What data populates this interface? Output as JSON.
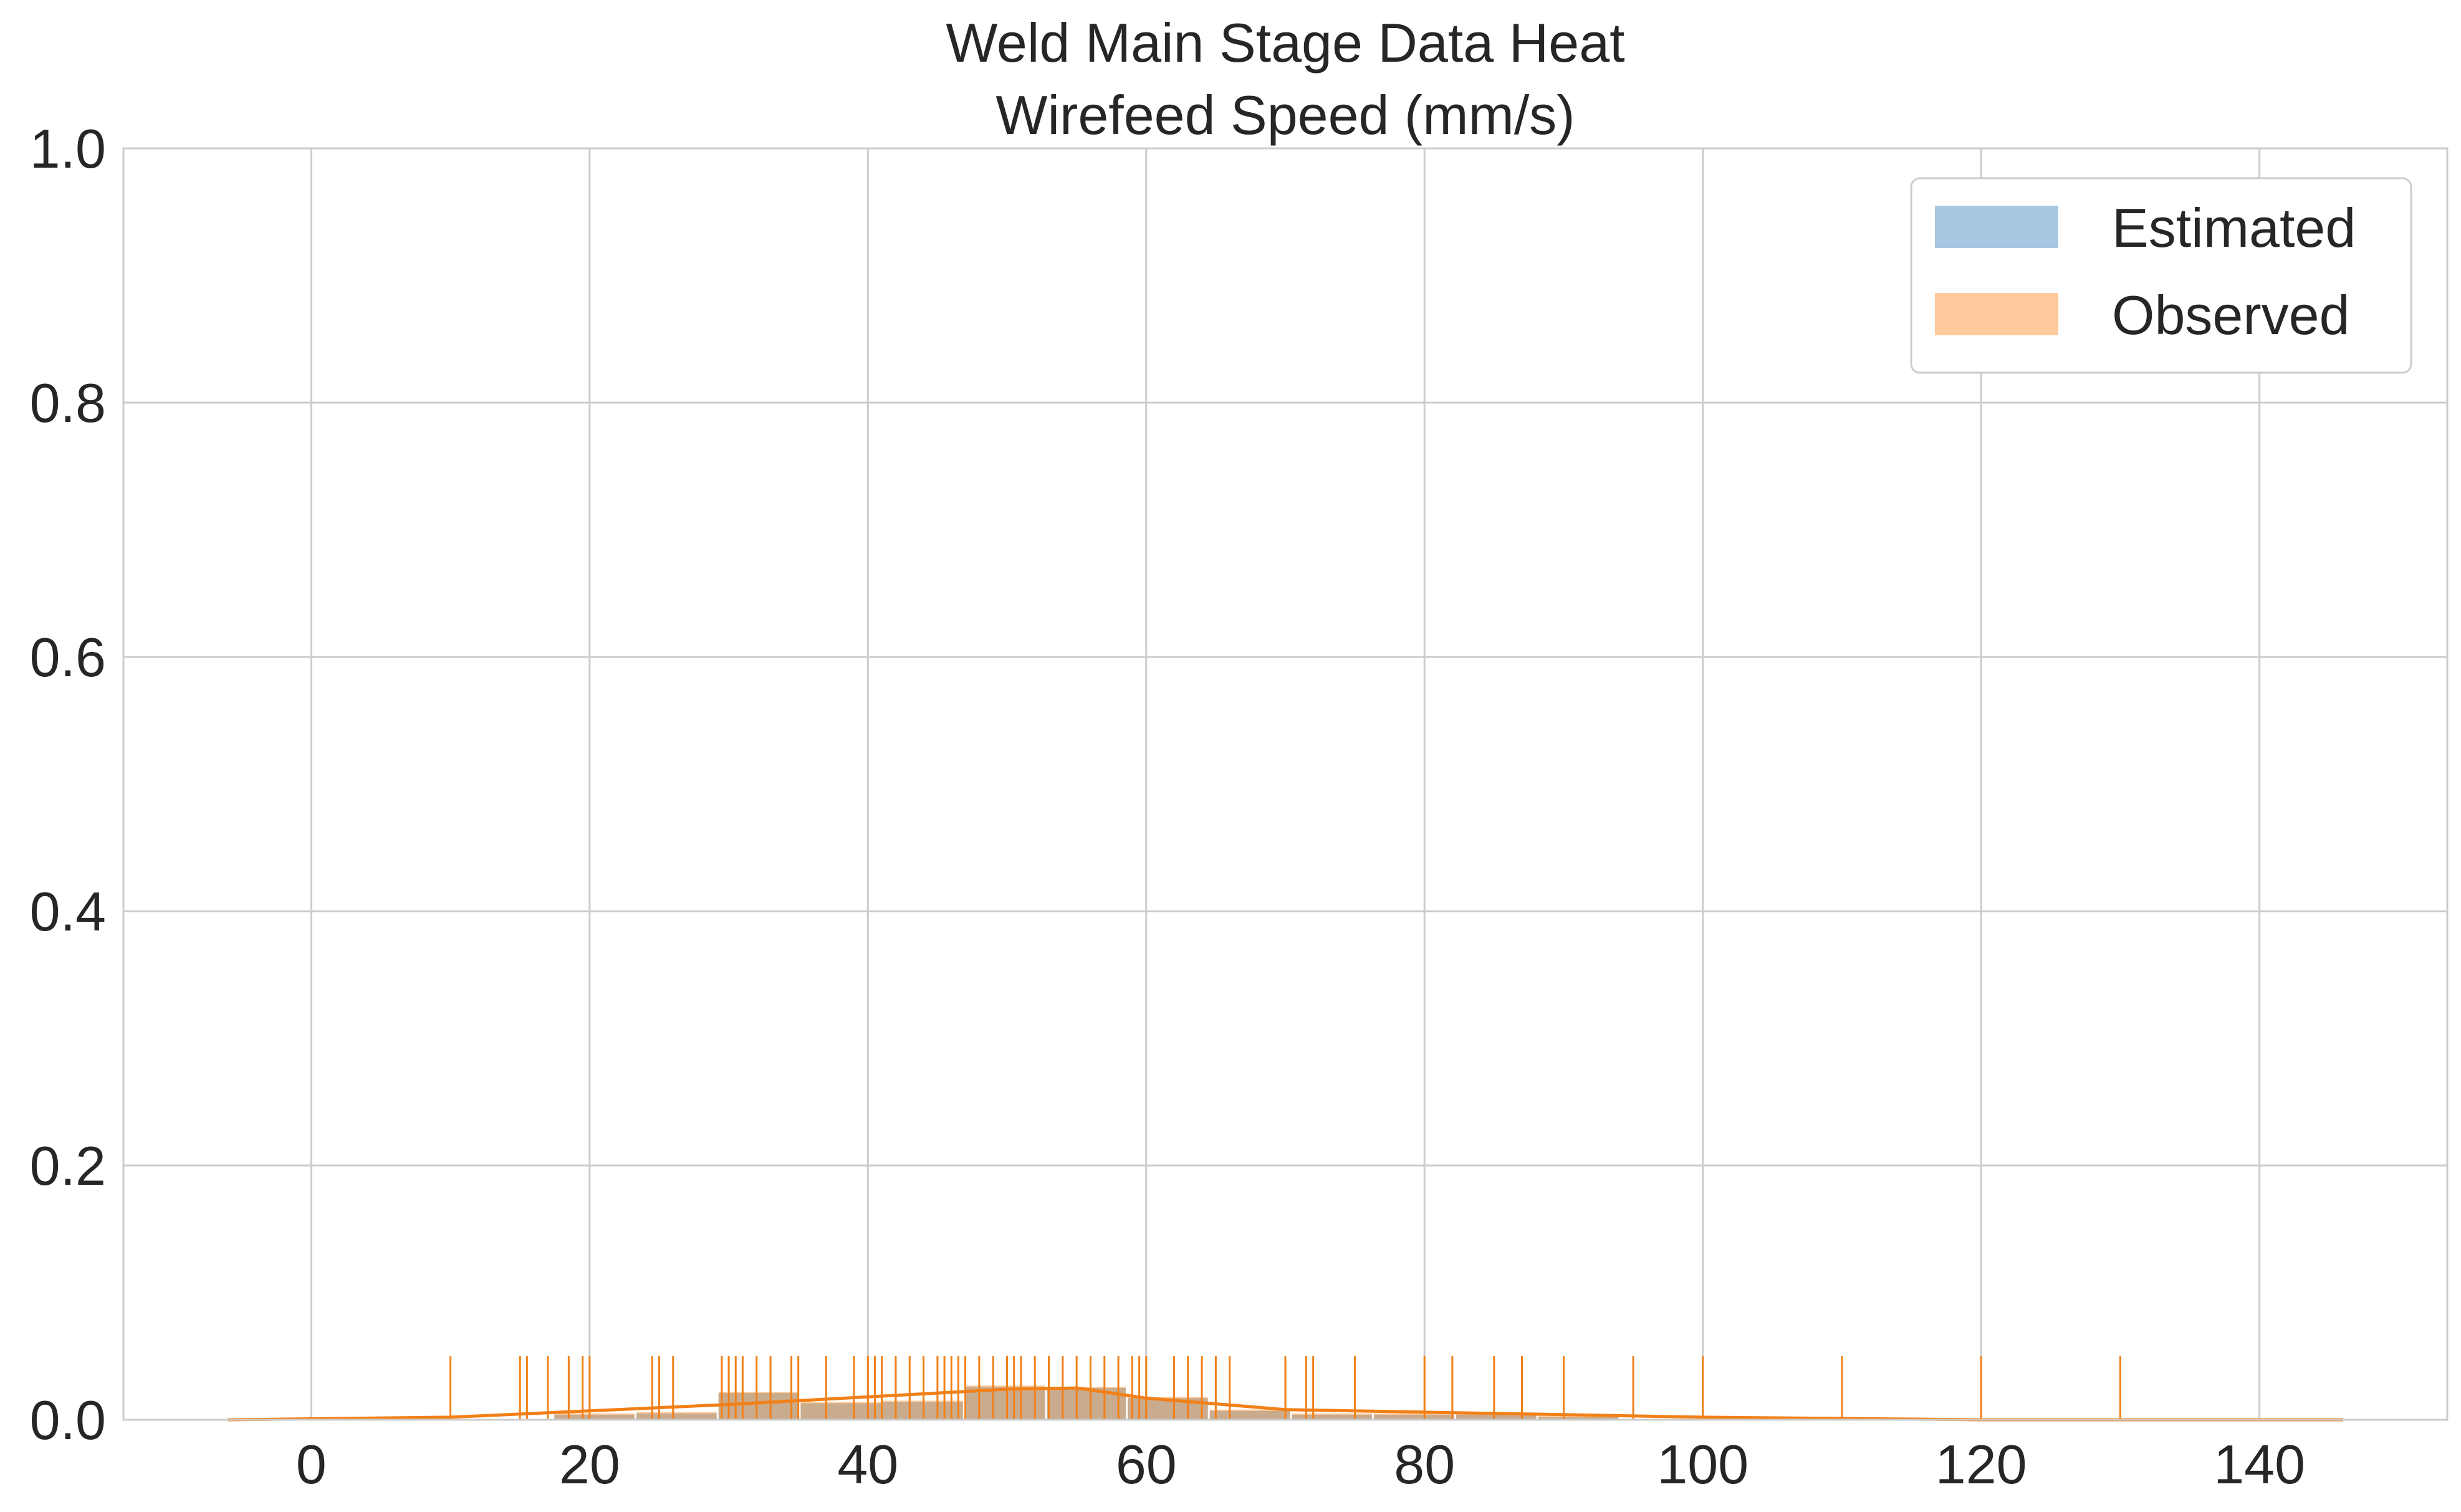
{
  "chart_data": {
    "type": "histogram",
    "title": "Weld Main Stage Data Heat",
    "subtitle": "Wirefeed Speed (mm/s)",
    "xlim": [
      -13.5,
      153.5
    ],
    "ylim": [
      0,
      1
    ],
    "x_ticks": [
      "0",
      "20",
      "40",
      "60",
      "80",
      "100",
      "120",
      "140"
    ],
    "y_ticks": [
      "0.0",
      "0.2",
      "0.4",
      "0.6",
      "0.8",
      "1.0"
    ],
    "grid": true,
    "legend": {
      "placement": "top-right",
      "entries": [
        {
          "label": "Estimated",
          "color": "#a6c6e1"
        },
        {
          "label": "Observed",
          "color": "#ffc99b"
        }
      ]
    },
    "histogram_bins": [
      {
        "x0": 17.4,
        "x1": 23.3,
        "estimated": 0.004,
        "observed": 0.005
      },
      {
        "x0": 23.3,
        "x1": 29.2,
        "estimated": 0.005,
        "observed": 0.006
      },
      {
        "x0": 29.2,
        "x1": 35.1,
        "estimated": 0.021,
        "observed": 0.022
      },
      {
        "x0": 35.1,
        "x1": 41.0,
        "estimated": 0.013,
        "observed": 0.014
      },
      {
        "x0": 41.0,
        "x1": 46.9,
        "estimated": 0.014,
        "observed": 0.015
      },
      {
        "x0": 46.9,
        "x1": 52.8,
        "estimated": 0.026,
        "observed": 0.027
      },
      {
        "x0": 52.8,
        "x1": 58.6,
        "estimated": 0.025,
        "observed": 0.026
      },
      {
        "x0": 58.6,
        "x1": 64.5,
        "estimated": 0.017,
        "observed": 0.018
      },
      {
        "x0": 64.5,
        "x1": 70.4,
        "estimated": 0.007,
        "observed": 0.008
      },
      {
        "x0": 70.4,
        "x1": 76.3,
        "estimated": 0.004,
        "observed": 0.005
      },
      {
        "x0": 76.3,
        "x1": 82.2,
        "estimated": 0.004,
        "observed": 0.005
      },
      {
        "x0": 82.2,
        "x1": 88.1,
        "estimated": 0.004,
        "observed": 0.005
      },
      {
        "x0": 88.1,
        "x1": 94.0,
        "estimated": 0.002,
        "observed": 0.003
      }
    ],
    "kde_line": {
      "color": "#f28018",
      "x": [
        -6,
        10,
        30,
        40,
        50,
        55,
        60,
        70,
        80,
        90,
        100,
        120,
        146
      ],
      "y": [
        0.0,
        0.002,
        0.012,
        0.018,
        0.024,
        0.025,
        0.017,
        0.008,
        0.006,
        0.004,
        0.002,
        0.0,
        0.0
      ]
    },
    "rug": {
      "color": "#f28018",
      "height": 0.05,
      "x": [
        10,
        15,
        15.5,
        17,
        18.5,
        19.5,
        20,
        24.5,
        25,
        26,
        29.5,
        30,
        30.5,
        31,
        32,
        33,
        34.5,
        35,
        37,
        39,
        40,
        40.5,
        41,
        42,
        43,
        44,
        45,
        45.5,
        46,
        46.5,
        47,
        48,
        49,
        50,
        50.5,
        51,
        52,
        53,
        54,
        55,
        56,
        57,
        58,
        59,
        59.5,
        60,
        62,
        63,
        64,
        65,
        66,
        70,
        71.5,
        72,
        75,
        80,
        82,
        85,
        87,
        90,
        95,
        100,
        110,
        120,
        130
      ]
    }
  }
}
